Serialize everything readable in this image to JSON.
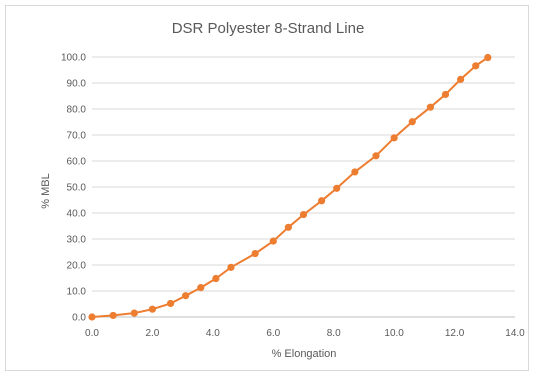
{
  "chart_data": {
    "type": "scatter",
    "title": "DSR Polyester 8-Strand Line",
    "xlabel": "% Elongation",
    "ylabel": "% MBL",
    "xlim": [
      0,
      14
    ],
    "ylim": [
      0,
      100
    ],
    "x_ticks": [
      "0.0",
      "2.0",
      "4.0",
      "6.0",
      "8.0",
      "10.0",
      "12.0",
      "14.0"
    ],
    "y_ticks": [
      "0.0",
      "10.0",
      "20.0",
      "30.0",
      "40.0",
      "50.0",
      "60.0",
      "70.0",
      "80.0",
      "90.0",
      "100.0"
    ],
    "grid": "horizontal",
    "legend": "none",
    "series": [
      {
        "color": "#ED7D31",
        "x": [
          0.0,
          0.7,
          1.4,
          2.0,
          2.6,
          3.1,
          3.6,
          4.1,
          4.6,
          5.4,
          6.0,
          6.5,
          7.0,
          7.6,
          8.1,
          8.7,
          9.4,
          10.0,
          10.6,
          11.2,
          11.7,
          12.2,
          12.7,
          13.1
        ],
        "y": [
          0.0,
          0.6,
          1.5,
          3.0,
          5.2,
          8.2,
          11.3,
          14.8,
          19.1,
          24.4,
          29.2,
          34.5,
          39.4,
          44.7,
          49.5,
          55.8,
          62.0,
          68.9,
          75.1,
          80.7,
          85.6,
          91.4,
          96.6,
          99.8
        ]
      }
    ]
  }
}
